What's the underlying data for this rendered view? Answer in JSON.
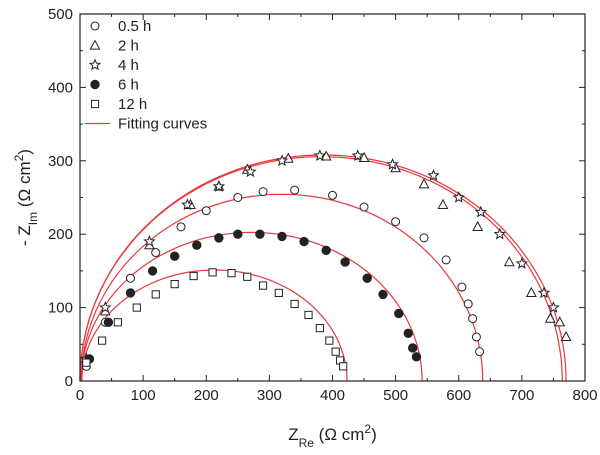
{
  "chart_data": {
    "type": "scatter",
    "title": "",
    "xlabel": {
      "main": "Z",
      "sub": "Re",
      "unit_pre": " (Ω cm",
      "unit_sup": "2",
      "unit_post": ")"
    },
    "ylabel": {
      "main": "- Z",
      "sub": "Im",
      "unit_pre": " (Ω cm",
      "unit_sup": "2",
      "unit_post": ")"
    },
    "xlim": [
      0,
      800
    ],
    "ylim": [
      0,
      500
    ],
    "xticks": [
      0,
      100,
      200,
      300,
      400,
      500,
      600,
      700,
      800
    ],
    "yticks": [
      0,
      100,
      200,
      300,
      400,
      500
    ],
    "grid": false,
    "legend_position": "top-left",
    "fit_color": "#e8383d",
    "marker_color": "#222222",
    "series": [
      {
        "name": "0.5 h",
        "marker": "circle-open",
        "fit_center": 320,
        "fit_radius": 318,
        "fit_depression": 0.8,
        "x": [
          10,
          40,
          80,
          120,
          160,
          200,
          250,
          290,
          340,
          400,
          450,
          500,
          545,
          580,
          605,
          615,
          622,
          628,
          633
        ],
        "y": [
          20,
          80,
          140,
          175,
          210,
          232,
          250,
          258,
          260,
          253,
          237,
          217,
          195,
          165,
          128,
          105,
          85,
          60,
          40
        ]
      },
      {
        "name": "2 h",
        "marker": "triangle-open",
        "fit_center": 382,
        "fit_radius": 382,
        "fit_depression": 0.8,
        "x": [
          10,
          40,
          110,
          175,
          220,
          265,
          330,
          390,
          450,
          500,
          545,
          575,
          630,
          680,
          715,
          745,
          760,
          770
        ],
        "y": [
          30,
          95,
          185,
          240,
          265,
          288,
          303,
          306,
          304,
          290,
          268,
          240,
          210,
          162,
          120,
          85,
          80,
          60
        ]
      },
      {
        "name": "4 h",
        "marker": "star-open",
        "fit_center": 385,
        "fit_radius": 385,
        "fit_depression": 0.8,
        "x": [
          10,
          40,
          110,
          170,
          220,
          270,
          320,
          380,
          440,
          495,
          560,
          600,
          635,
          665,
          700,
          735,
          750
        ],
        "y": [
          30,
          100,
          190,
          240,
          265,
          285,
          300,
          307,
          307,
          295,
          280,
          250,
          230,
          200,
          160,
          120,
          100
        ]
      },
      {
        "name": "6 h",
        "marker": "circle-filled",
        "fit_center": 272,
        "fit_radius": 270,
        "fit_depression": 0.75,
        "x": [
          15,
          45,
          80,
          115,
          150,
          185,
          220,
          250,
          285,
          320,
          355,
          390,
          420,
          455,
          480,
          505,
          520,
          527,
          533
        ],
        "y": [
          30,
          80,
          120,
          150,
          170,
          185,
          195,
          200,
          200,
          197,
          190,
          178,
          162,
          140,
          118,
          92,
          65,
          45,
          33
        ]
      },
      {
        "name": "12 h",
        "marker": "square-open",
        "fit_center": 213,
        "fit_radius": 210,
        "fit_depression": 0.72,
        "x": [
          10,
          35,
          60,
          90,
          120,
          150,
          180,
          210,
          240,
          265,
          290,
          315,
          340,
          362,
          380,
          395,
          405,
          412,
          417
        ],
        "y": [
          25,
          55,
          80,
          100,
          118,
          132,
          143,
          148,
          147,
          142,
          130,
          120,
          105,
          90,
          72,
          55,
          40,
          28,
          20
        ]
      }
    ],
    "fit_legend_label": "Fitting curves"
  }
}
